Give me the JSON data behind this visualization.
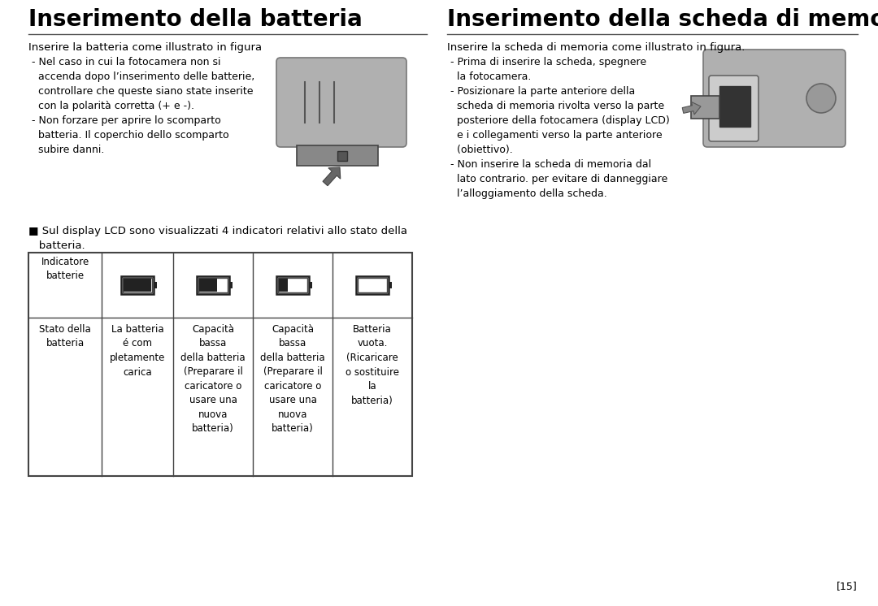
{
  "bg_color": "#ffffff",
  "title_left": "Inserimento della batteria",
  "title_right": "Inserimento della scheda di memoria",
  "subtitle_left": "Inserire la batteria come illustrato in figura",
  "subtitle_right": "Inserire la scheda di memoria come illustrato in figura.",
  "bullet_left_1": " - Nel caso in cui la fotocamera non si\n   accenda dopo l’inserimento delle batterie,\n   controllare che queste siano state inserite\n   con la polarità corretta (+ e -).\n - Non forzare per aprire lo scomparto\n   batteria. Il coperchio dello scomparto\n   subire danni.",
  "bullet_right_1": " - Prima di inserire la scheda, spegnere\n   la fotocamera.\n - Posizionare la parte anteriore della\n   scheda di memoria rivolta verso la parte\n   posteriore della fotocamera (display LCD)\n   e i collegamenti verso la parte anteriore\n   (obiettivo).\n - Non inserire la scheda di memoria dal\n   lato contrario. per evitare di danneggiare\n   l’alloggiamento della scheda.",
  "lcd_note_square": "■",
  "lcd_note_text": " Sul display LCD sono visualizzati 4 indicatori relativi allo stato della\n   batteria.",
  "table_col0_header": "Indicatore\nbatterie",
  "table_col0_body": "Stato della\nbatteria",
  "table_col1_body": "La batteria\né com\npletamente\ncarica",
  "table_col2_body": "Capacità\nbassa\ndella batteria\n(Preparare il\ncaricatore o\nusare una\nnuova\nbatteria)",
  "table_col3_body": "Capacità\nbassa\ndella batteria\n(Preparare il\ncaricatore o\nusare una\nnuova\nbatteria)",
  "table_col4_body": "Batteria\nvuota.\n(Ricaricare\no sostituire\nla\nbatteria)",
  "page_number": "15"
}
